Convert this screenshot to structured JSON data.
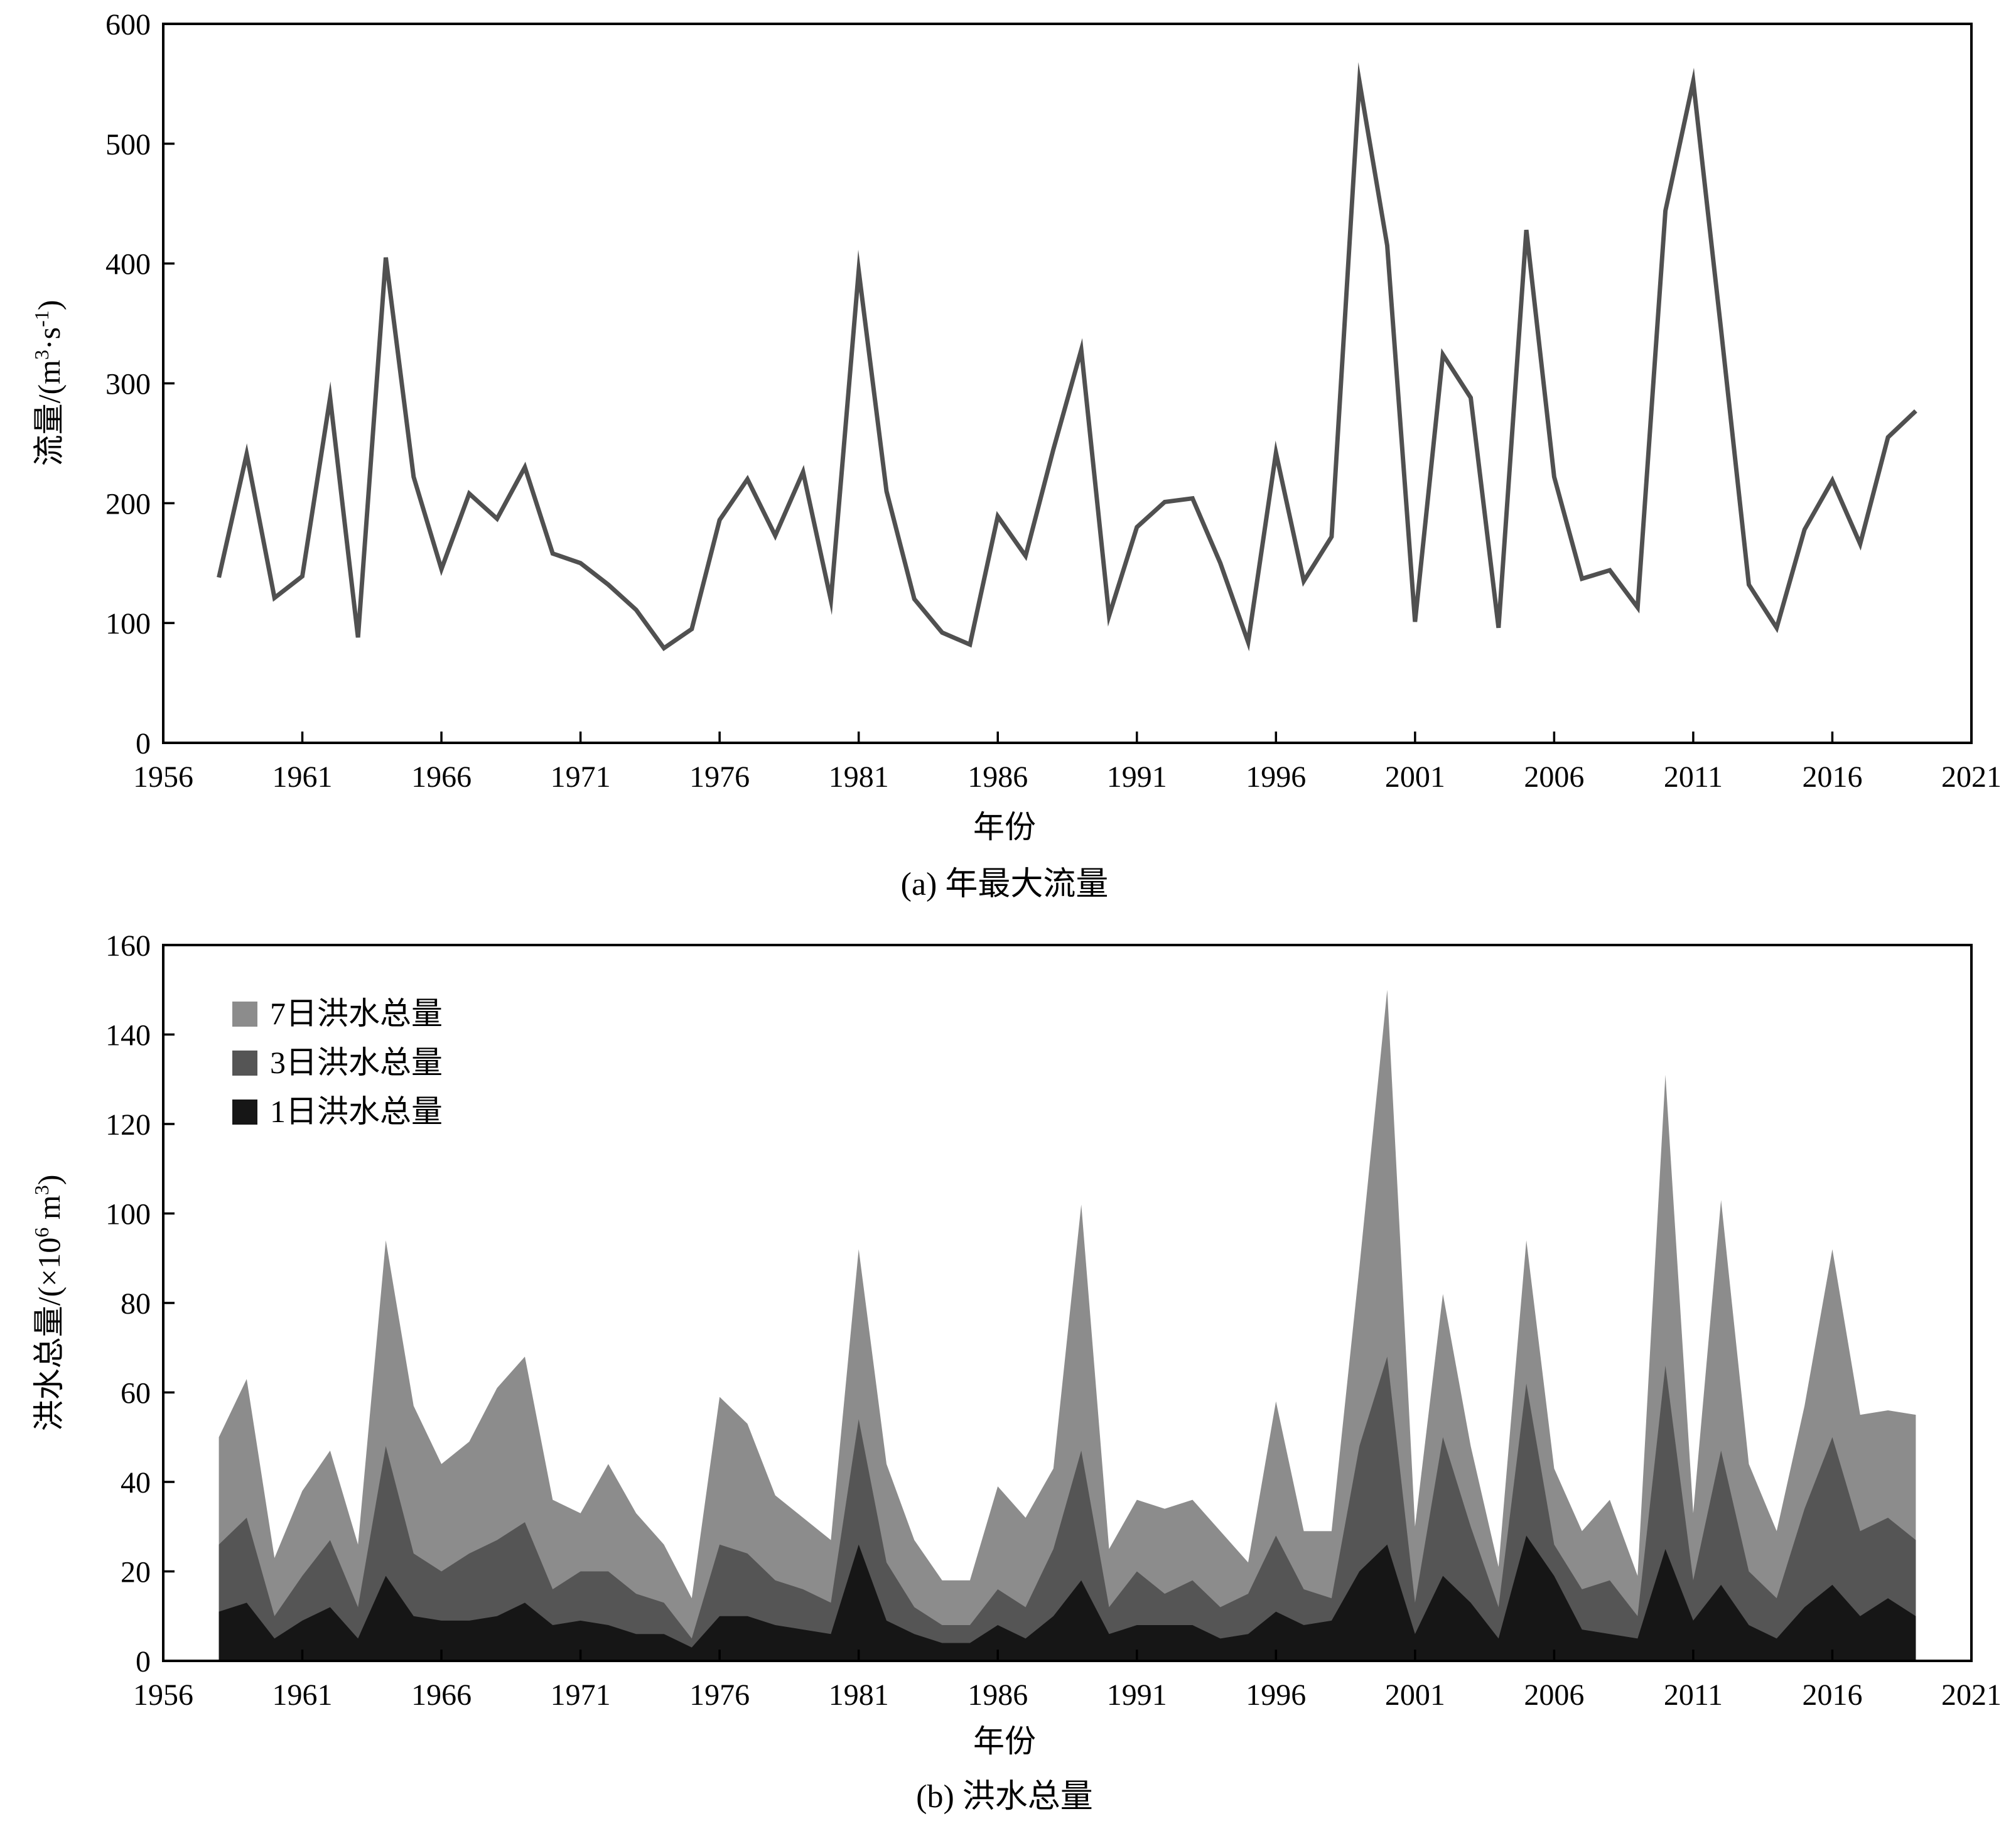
{
  "figure": {
    "caption_a": "(a) 年最大流量",
    "caption_b": "(b) 洪水总量"
  },
  "chart_data": [
    {
      "type": "line",
      "title": "",
      "xlabel": "年份",
      "ylabel": "流量/(m³·s⁻¹)",
      "ylabel_parts": {
        "main": "流量/(m",
        "sup1": "3",
        "mid": "·s",
        "sup2": "-1",
        "end": ")"
      },
      "xlim": [
        1956,
        2021
      ],
      "ylim": [
        0,
        600
      ],
      "xticks": [
        1956,
        1961,
        1966,
        1971,
        1976,
        1981,
        1986,
        1991,
        1996,
        2001,
        2006,
        2011,
        2016,
        2021
      ],
      "yticks": [
        0,
        100,
        200,
        300,
        400,
        500,
        600
      ],
      "grid": false,
      "line_color": "#505050",
      "x": [
        1958,
        1959,
        1960,
        1961,
        1962,
        1963,
        1964,
        1965,
        1966,
        1967,
        1968,
        1969,
        1970,
        1971,
        1972,
        1973,
        1974,
        1975,
        1976,
        1977,
        1978,
        1979,
        1980,
        1981,
        1982,
        1983,
        1984,
        1985,
        1986,
        1987,
        1988,
        1989,
        1990,
        1991,
        1992,
        1993,
        1994,
        1995,
        1996,
        1997,
        1998,
        1999,
        2000,
        2001,
        2002,
        2003,
        2004,
        2005,
        2006,
        2007,
        2008,
        2009,
        2010,
        2011,
        2012,
        2013,
        2014,
        2015,
        2016,
        2017,
        2018,
        2019
      ],
      "values": [
        138,
        241,
        121,
        139,
        288,
        88,
        405,
        222,
        145,
        208,
        187,
        230,
        158,
        150,
        132,
        111,
        79,
        95,
        186,
        220,
        173,
        226,
        119,
        394,
        210,
        120,
        92,
        82,
        189,
        156,
        245,
        328,
        106,
        180,
        201,
        204,
        150,
        84,
        242,
        135,
        172,
        552,
        415,
        101,
        324,
        288,
        96,
        428,
        222,
        137,
        144,
        113,
        444,
        552,
        345,
        132,
        96,
        178,
        219,
        166,
        255,
        277
      ]
    },
    {
      "type": "area",
      "title": "",
      "xlabel": "年份",
      "ylabel": "洪水总量/(×10⁶ m³)",
      "ylabel_parts": {
        "main": "洪水总量/(×10",
        "sup1": "6",
        "mid": " m",
        "sup2": "3",
        "end": ")"
      },
      "xlim": [
        1956,
        2021
      ],
      "ylim": [
        0,
        160
      ],
      "xticks": [
        1956,
        1961,
        1966,
        1971,
        1976,
        1981,
        1986,
        1991,
        1996,
        2001,
        2006,
        2011,
        2016,
        2021
      ],
      "yticks": [
        0,
        20,
        40,
        60,
        80,
        100,
        120,
        140,
        160
      ],
      "grid": false,
      "legend_position": "top-left",
      "x": [
        1958,
        1959,
        1960,
        1961,
        1962,
        1963,
        1964,
        1965,
        1966,
        1967,
        1968,
        1969,
        1970,
        1971,
        1972,
        1973,
        1974,
        1975,
        1976,
        1977,
        1978,
        1979,
        1980,
        1981,
        1982,
        1983,
        1984,
        1985,
        1986,
        1987,
        1988,
        1989,
        1990,
        1991,
        1992,
        1993,
        1994,
        1995,
        1996,
        1997,
        1998,
        1999,
        2000,
        2001,
        2002,
        2003,
        2004,
        2005,
        2006,
        2007,
        2008,
        2009,
        2010,
        2011,
        2012,
        2013,
        2014,
        2015,
        2016,
        2017,
        2018,
        2019
      ],
      "series": [
        {
          "name": "7日洪水总量",
          "color": "#8c8c8c",
          "values": [
            50,
            63,
            23,
            38,
            47,
            26,
            94,
            57,
            44,
            49,
            61,
            68,
            36,
            33,
            44,
            33,
            26,
            14,
            59,
            53,
            37,
            32,
            27,
            92,
            44,
            27,
            18,
            18,
            39,
            32,
            43,
            102,
            25,
            36,
            34,
            36,
            29,
            22,
            58,
            29,
            29,
            88,
            150,
            30,
            82,
            48,
            21,
            94,
            43,
            29,
            36,
            19,
            131,
            33,
            103,
            44,
            29,
            57,
            92,
            55,
            56,
            55
          ]
        },
        {
          "name": "3日洪水总量",
          "color": "#555555",
          "values": [
            26,
            32,
            10,
            19,
            27,
            12,
            48,
            24,
            20,
            24,
            27,
            31,
            16,
            20,
            20,
            15,
            13,
            5,
            26,
            24,
            18,
            16,
            13,
            54,
            22,
            12,
            8,
            8,
            16,
            12,
            25,
            47,
            12,
            20,
            15,
            18,
            12,
            15,
            28,
            16,
            14,
            48,
            68,
            13,
            50,
            30,
            12,
            62,
            26,
            16,
            18,
            10,
            66,
            18,
            47,
            20,
            14,
            34,
            50,
            29,
            32,
            27
          ]
        },
        {
          "name": "1日洪水总量",
          "color": "#161616",
          "values": [
            11,
            13,
            5,
            9,
            12,
            5,
            19,
            10,
            9,
            9,
            10,
            13,
            8,
            9,
            8,
            6,
            6,
            3,
            10,
            10,
            8,
            7,
            6,
            26,
            9,
            6,
            4,
            4,
            8,
            5,
            10,
            18,
            6,
            8,
            8,
            8,
            5,
            6,
            11,
            8,
            9,
            20,
            26,
            6,
            19,
            13,
            5,
            28,
            19,
            7,
            6,
            5,
            25,
            9,
            17,
            8,
            5,
            12,
            17,
            10,
            14,
            10
          ]
        }
      ]
    }
  ]
}
